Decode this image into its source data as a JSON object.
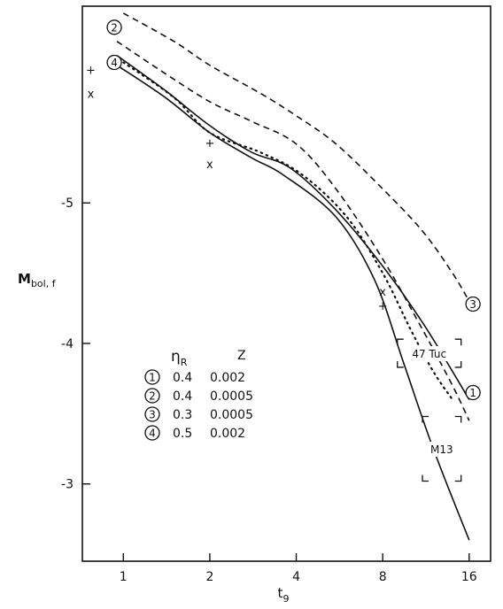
{
  "chart_data": {
    "type": "line",
    "xlabel": "t",
    "xlabel_sub": "9",
    "ylabel": "M",
    "ylabel_sub": "bol, f",
    "x_scale": "log",
    "x_ticks": [
      1,
      2,
      4,
      8,
      16
    ],
    "y_ticks": [
      -5,
      -4,
      -3
    ],
    "xlim": [
      0.72,
      19
    ],
    "ylim": [
      -2.45,
      -6.4
    ],
    "grid": false,
    "series": [
      {
        "label": "1",
        "style": "solid",
        "x": [
          0.95,
          1.4,
          2.0,
          2.8,
          3.8,
          5.5,
          8.0,
          11.0,
          14.0,
          16.0
        ],
        "y": [
          -6.05,
          -5.8,
          -5.55,
          -5.36,
          -5.25,
          -4.95,
          -4.55,
          -4.15,
          -3.8,
          -3.6
        ]
      },
      {
        "label": "2",
        "style": "dashed",
        "x": [
          0.95,
          1.4,
          2.0,
          2.8,
          4.0,
          5.5,
          8.0,
          11.0,
          14.0,
          16.0
        ],
        "y": [
          -6.15,
          -5.92,
          -5.72,
          -5.58,
          -5.42,
          -5.1,
          -4.6,
          -4.1,
          -3.7,
          -3.45
        ]
      },
      {
        "label": "3",
        "style": "dashed",
        "x": [
          1.0,
          1.5,
          2.0,
          3.0,
          4.0,
          5.5,
          8.0,
          11.0,
          14.0,
          16.0
        ],
        "y": [
          -6.35,
          -6.15,
          -5.98,
          -5.78,
          -5.62,
          -5.42,
          -5.1,
          -4.8,
          -4.5,
          -4.3
        ]
      },
      {
        "label": "4",
        "style": "solid",
        "x": [
          0.95,
          1.4,
          2.0,
          2.8,
          3.6,
          5.5,
          7.5,
          9.5,
          12.0,
          16.0
        ],
        "y": [
          -5.98,
          -5.75,
          -5.5,
          -5.32,
          -5.2,
          -4.9,
          -4.45,
          -3.85,
          -3.25,
          -2.6
        ]
      },
      {
        "label": "",
        "style": "dotted",
        "x": [
          1.0,
          1.5,
          2.0,
          3.0,
          4.2,
          6.0,
          8.0,
          10.0,
          12.0,
          14.0
        ],
        "y": [
          -6.0,
          -5.75,
          -5.5,
          -5.36,
          -5.2,
          -4.9,
          -4.5,
          -4.1,
          -3.8,
          -3.6
        ]
      }
    ],
    "markers": [
      {
        "symbol": "+",
        "x": 0.77,
        "y": -5.95
      },
      {
        "symbol": "x",
        "x": 0.77,
        "y": -5.78
      },
      {
        "symbol": "+",
        "x": 2.0,
        "y": -5.43
      },
      {
        "symbol": "x",
        "x": 2.0,
        "y": -5.28
      },
      {
        "symbol": "x",
        "x": 8.0,
        "y": -4.37
      },
      {
        "symbol": "+",
        "x": 8.0,
        "y": -4.27
      }
    ],
    "curve_labels": [
      {
        "text": "2",
        "x": 0.93,
        "y": -6.25
      },
      {
        "text": "4",
        "x": 0.93,
        "y": -6.0
      },
      {
        "text": "3",
        "x": 16.5,
        "y": -4.28
      },
      {
        "text": "1",
        "x": 16.5,
        "y": -3.65
      }
    ],
    "legend": {
      "placement": "lower-left",
      "header_eta": "η",
      "header_eta_sub": "R",
      "header_z": "Z",
      "rows": [
        {
          "symbol": "1",
          "eta": "0.4",
          "z": "0.002"
        },
        {
          "symbol": "2",
          "eta": "0.4",
          "z": "0.0005"
        },
        {
          "symbol": "3",
          "eta": "0.3",
          "z": "0.0005"
        },
        {
          "symbol": "4",
          "eta": "0.5",
          "z": "0.002"
        }
      ]
    },
    "regions": [
      {
        "text": "47 Tuc",
        "x_range": [
          9.0,
          15.0
        ],
        "y_range": [
          -4.03,
          -3.83
        ]
      },
      {
        "text": "M13",
        "x_range": [
          11.0,
          15.0
        ],
        "y_range": [
          -3.48,
          -3.02
        ]
      }
    ]
  }
}
